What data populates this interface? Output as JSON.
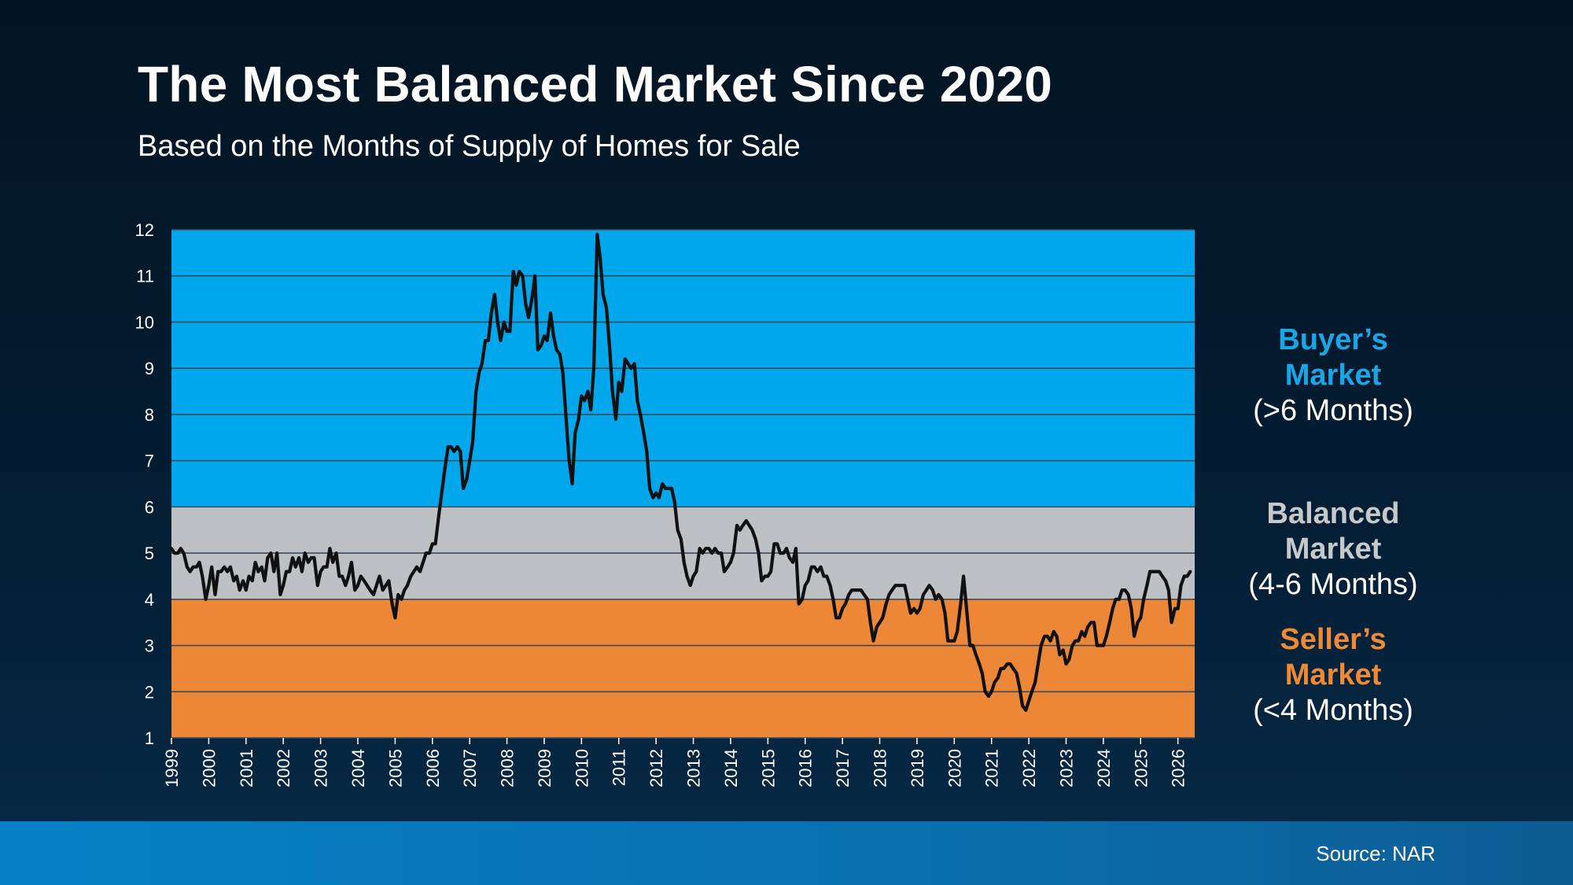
{
  "title": "The Most Balanced Market Since 2020",
  "subtitle": "Based on the Months of Supply of Homes for Sale",
  "source": "Source: NAR",
  "legend": {
    "buyer": {
      "name_line1": "Buyer’s",
      "name_line2": "Market",
      "range": "(>6 Months)",
      "color": "#19a6e6"
    },
    "balanced": {
      "name_line1": "Balanced",
      "name_line2": "Market",
      "range": "(4-6 Months)",
      "color": "#c6c9cb"
    },
    "seller": {
      "name_line1": "Seller’s",
      "name_line2": "Market",
      "range": "(<4 Months)",
      "color": "#ee8a35"
    }
  },
  "chart_data": {
    "type": "line",
    "title": "The Most Balanced Market Since 2020",
    "subtitle": "Based on the Months of Supply of Homes for Sale",
    "xlabel": "",
    "ylabel": "",
    "ylim": [
      1,
      12
    ],
    "xlim": [
      1999,
      2026.45
    ],
    "yticks": [
      1,
      2,
      3,
      4,
      5,
      6,
      7,
      8,
      9,
      10,
      11,
      12
    ],
    "xticks": [
      "1999",
      "2000",
      "2001",
      "2002",
      "2003",
      "2004",
      "2005",
      "2006",
      "2007",
      "2008",
      "2009",
      "2010",
      "2011",
      "2012",
      "2013",
      "2014",
      "2015",
      "2016",
      "2017",
      "2018",
      "2019",
      "2020",
      "2021",
      "2022",
      "2023",
      "2024",
      "2025",
      "2026"
    ],
    "grid": true,
    "bands": [
      {
        "name": "Seller’s Market",
        "from": 1,
        "to": 4,
        "color": "#ec8738"
      },
      {
        "name": "Balanced Market",
        "from": 4,
        "to": 6,
        "color": "#bec1c3"
      },
      {
        "name": "Buyer’s Market",
        "from": 6,
        "to": 12,
        "color": "#00a7ec"
      }
    ],
    "line_color": "#111111",
    "series": [
      {
        "name": "",
        "x": [
          1999.0,
          1999.08,
          1999.17,
          1999.25,
          1999.33,
          1999.42,
          1999.5,
          1999.58,
          1999.67,
          1999.75,
          1999.83,
          1999.92,
          2000.0,
          2000.08,
          2000.17,
          2000.25,
          2000.33,
          2000.42,
          2000.5,
          2000.58,
          2000.67,
          2000.75,
          2000.83,
          2000.92,
          2001.0,
          2001.08,
          2001.17,
          2001.25,
          2001.33,
          2001.42,
          2001.5,
          2001.58,
          2001.67,
          2001.75,
          2001.83,
          2001.92,
          2002.0,
          2002.08,
          2002.17,
          2002.25,
          2002.33,
          2002.42,
          2002.5,
          2002.58,
          2002.67,
          2002.75,
          2002.83,
          2002.92,
          2003.0,
          2003.08,
          2003.17,
          2003.25,
          2003.33,
          2003.42,
          2003.5,
          2003.58,
          2003.67,
          2003.75,
          2003.83,
          2003.92,
          2004.0,
          2004.08,
          2004.17,
          2004.25,
          2004.33,
          2004.42,
          2004.5,
          2004.58,
          2004.67,
          2004.75,
          2004.83,
          2004.92,
          2005.0,
          2005.08,
          2005.17,
          2005.25,
          2005.33,
          2005.42,
          2005.5,
          2005.58,
          2005.67,
          2005.75,
          2005.83,
          2005.92,
          2006.0,
          2006.08,
          2006.17,
          2006.25,
          2006.33,
          2006.42,
          2006.5,
          2006.58,
          2006.67,
          2006.75,
          2006.83,
          2006.92,
          2007.0,
          2007.08,
          2007.17,
          2007.25,
          2007.33,
          2007.42,
          2007.5,
          2007.58,
          2007.67,
          2007.75,
          2007.83,
          2007.92,
          2008.0,
          2008.08,
          2008.17,
          2008.25,
          2008.33,
          2008.42,
          2008.5,
          2008.58,
          2008.67,
          2008.75,
          2008.83,
          2008.92,
          2009.0,
          2009.08,
          2009.17,
          2009.25,
          2009.33,
          2009.42,
          2009.5,
          2009.58,
          2009.67,
          2009.75,
          2009.83,
          2009.92,
          2010.0,
          2010.08,
          2010.17,
          2010.25,
          2010.33,
          2010.42,
          2010.5,
          2010.58,
          2010.67,
          2010.75,
          2010.83,
          2010.92,
          2011.0,
          2011.08,
          2011.17,
          2011.25,
          2011.33,
          2011.42,
          2011.5,
          2011.58,
          2011.67,
          2011.75,
          2011.83,
          2011.92,
          2012.0,
          2012.08,
          2012.17,
          2012.25,
          2012.33,
          2012.42,
          2012.5,
          2012.58,
          2012.67,
          2012.75,
          2012.83,
          2012.92,
          2013.0,
          2013.08,
          2013.17,
          2013.25,
          2013.33,
          2013.42,
          2013.5,
          2013.58,
          2013.67,
          2013.75,
          2013.83,
          2013.92,
          2014.0,
          2014.08,
          2014.17,
          2014.25,
          2014.33,
          2014.42,
          2014.5,
          2014.58,
          2014.67,
          2014.75,
          2014.83,
          2014.92,
          2015.0,
          2015.08,
          2015.17,
          2015.25,
          2015.33,
          2015.42,
          2015.5,
          2015.58,
          2015.67,
          2015.75,
          2015.83,
          2015.92,
          2016.0,
          2016.08,
          2016.17,
          2016.25,
          2016.33,
          2016.42,
          2016.5,
          2016.58,
          2016.67,
          2016.75,
          2016.83,
          2016.92,
          2017.0,
          2017.08,
          2017.17,
          2017.25,
          2017.33,
          2017.42,
          2017.5,
          2017.58,
          2017.67,
          2017.75,
          2017.83,
          2017.92,
          2018.0,
          2018.08,
          2018.17,
          2018.25,
          2018.33,
          2018.42,
          2018.5,
          2018.58,
          2018.67,
          2018.75,
          2018.83,
          2018.92,
          2019.0,
          2019.08,
          2019.17,
          2019.25,
          2019.33,
          2019.42,
          2019.5,
          2019.58,
          2019.67,
          2019.75,
          2019.83,
          2019.92,
          2020.0,
          2020.08,
          2020.17,
          2020.25,
          2020.33,
          2020.42,
          2020.5,
          2020.58,
          2020.67,
          2020.75,
          2020.83,
          2020.92,
          2021.0,
          2021.08,
          2021.17,
          2021.25,
          2021.33,
          2021.42,
          2021.5,
          2021.58,
          2021.67,
          2021.75,
          2021.83,
          2021.92,
          2022.0,
          2022.08,
          2022.17,
          2022.25,
          2022.33,
          2022.42,
          2022.5,
          2022.58,
          2022.67,
          2022.75,
          2022.83,
          2022.92,
          2023.0,
          2023.08,
          2023.17,
          2023.25,
          2023.33,
          2023.42,
          2023.5,
          2023.58,
          2023.67,
          2023.75,
          2023.83,
          2023.92,
          2024.0,
          2024.08,
          2024.17,
          2024.25,
          2024.33,
          2024.42,
          2024.5,
          2024.58,
          2024.67,
          2024.75,
          2024.83,
          2024.92,
          2025.0,
          2025.08,
          2025.17,
          2025.25,
          2025.33,
          2025.42,
          2025.5,
          2025.58,
          2025.67,
          2025.75,
          2025.83,
          2025.92,
          2026.0,
          2026.08,
          2026.17,
          2026.25,
          2026.33
        ],
        "values": [
          5.1,
          5.0,
          5.0,
          5.1,
          5.0,
          4.7,
          4.6,
          4.7,
          4.7,
          4.8,
          4.5,
          4.0,
          4.3,
          4.7,
          4.1,
          4.6,
          4.6,
          4.7,
          4.6,
          4.7,
          4.4,
          4.5,
          4.2,
          4.4,
          4.2,
          4.5,
          4.4,
          4.8,
          4.6,
          4.7,
          4.4,
          4.9,
          5.0,
          4.6,
          5.0,
          4.1,
          4.3,
          4.6,
          4.6,
          4.9,
          4.7,
          4.9,
          4.6,
          5.0,
          4.8,
          4.9,
          4.9,
          4.3,
          4.6,
          4.7,
          4.7,
          5.1,
          4.8,
          5.0,
          4.5,
          4.5,
          4.3,
          4.5,
          4.8,
          4.2,
          4.3,
          4.5,
          4.4,
          4.3,
          4.2,
          4.1,
          4.3,
          4.5,
          4.2,
          4.3,
          4.4,
          3.9,
          3.6,
          4.1,
          4.0,
          4.2,
          4.3,
          4.5,
          4.6,
          4.7,
          4.6,
          4.8,
          5.0,
          5.0,
          5.2,
          5.2,
          5.8,
          6.3,
          6.8,
          7.3,
          7.3,
          7.2,
          7.3,
          7.2,
          6.4,
          6.6,
          7.0,
          7.4,
          8.5,
          8.9,
          9.1,
          9.6,
          9.6,
          10.2,
          10.6,
          10.0,
          9.6,
          10.0,
          9.8,
          9.8,
          11.1,
          10.8,
          11.1,
          11.0,
          10.4,
          10.1,
          10.5,
          11.0,
          9.4,
          9.5,
          9.7,
          9.6,
          10.2,
          9.7,
          9.4,
          9.3,
          8.9,
          8.0,
          7.0,
          6.5,
          7.6,
          7.9,
          8.4,
          8.3,
          8.5,
          8.1,
          9.0,
          11.9,
          11.4,
          10.6,
          10.3,
          9.5,
          8.5,
          7.9,
          8.7,
          8.5,
          9.2,
          9.1,
          9.0,
          9.1,
          8.3,
          8.0,
          7.6,
          7.2,
          6.4,
          6.2,
          6.3,
          6.2,
          6.5,
          6.4,
          6.4,
          6.4,
          6.1,
          5.5,
          5.3,
          4.8,
          4.5,
          4.3,
          4.5,
          4.6,
          5.1,
          5.0,
          5.1,
          5.1,
          5.0,
          5.1,
          5.0,
          5.0,
          4.6,
          4.7,
          4.8,
          5.0,
          5.6,
          5.5,
          5.6,
          5.7,
          5.6,
          5.5,
          5.3,
          5.0,
          4.4,
          4.5,
          4.5,
          4.6,
          5.2,
          5.2,
          5.0,
          5.0,
          5.1,
          4.9,
          4.8,
          5.1,
          3.9,
          4.0,
          4.3,
          4.4,
          4.7,
          4.7,
          4.6,
          4.7,
          4.5,
          4.5,
          4.3,
          4.0,
          3.6,
          3.6,
          3.8,
          3.9,
          4.1,
          4.2,
          4.2,
          4.2,
          4.2,
          4.1,
          4.0,
          3.5,
          3.1,
          3.4,
          3.5,
          3.6,
          3.9,
          4.1,
          4.2,
          4.3,
          4.3,
          4.3,
          4.3,
          4.0,
          3.7,
          3.8,
          3.7,
          3.8,
          4.1,
          4.2,
          4.3,
          4.2,
          4.0,
          4.1,
          4.0,
          3.7,
          3.1,
          3.1,
          3.1,
          3.3,
          3.9,
          4.5,
          3.8,
          3.0,
          3.0,
          2.8,
          2.6,
          2.4,
          2.0,
          1.9,
          2.0,
          2.2,
          2.3,
          2.5,
          2.5,
          2.6,
          2.6,
          2.5,
          2.4,
          2.1,
          1.7,
          1.6,
          1.8,
          2.0,
          2.2,
          2.6,
          3.0,
          3.2,
          3.2,
          3.1,
          3.3,
          3.2,
          2.8,
          2.9,
          2.6,
          2.7,
          3.0,
          3.1,
          3.1,
          3.3,
          3.2,
          3.4,
          3.5,
          3.5,
          3.0,
          3.0,
          3.0,
          3.2,
          3.5,
          3.8,
          4.0,
          4.0,
          4.2,
          4.2,
          4.1,
          3.8,
          3.2,
          3.5,
          3.6,
          4.0,
          4.3,
          4.6,
          4.6,
          4.6,
          4.6,
          4.5,
          4.4,
          4.2,
          3.5,
          3.8,
          3.8,
          4.3,
          4.5,
          4.5,
          4.6
        ]
      }
    ]
  }
}
